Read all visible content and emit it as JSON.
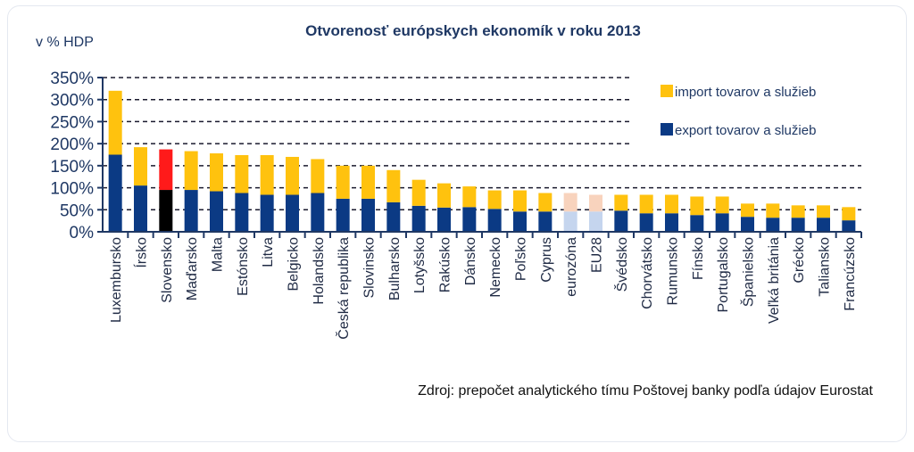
{
  "chart_data": {
    "type": "bar",
    "stacked": true,
    "title": "Otvorenosť európskych ekonomík v roku 2013",
    "ylabel": "v % HDP",
    "source": "Zdroj: prepočet analytického tímu Poštovej banky podľa údajov Eurostat",
    "ylim": [
      0,
      350
    ],
    "yticks": [
      "0%",
      "50%",
      "100%",
      "150%",
      "200%",
      "250%",
      "300%",
      "350%"
    ],
    "grid": true,
    "legend_position": "top-right",
    "categories": [
      "Luxembursko",
      "Írsko",
      "Slovensko",
      "Maďarsko",
      "Malta",
      "Estónsko",
      "Litva",
      "Belgicko",
      "Holandsko",
      "Česká republika",
      "Slovinsko",
      "Bulharsko",
      "Lotyšsko",
      "Rakúsko",
      "Dánsko",
      "Nemecko",
      "Poľsko",
      "Cyprus",
      "eurozóna",
      "EU28",
      "Švédsko",
      "Chorvátsko",
      "Rumunsko",
      "Fínsko",
      "Portugalsko",
      "Španielsko",
      "Veľká británia",
      "Grécko",
      "Taliansko",
      "Francúzsko"
    ],
    "series": [
      {
        "name": "export tovarov a služieb",
        "color": "#0b3a84",
        "values": [
          175,
          105,
          95,
          95,
          92,
          88,
          84,
          84,
          88,
          75,
          75,
          67,
          59,
          55,
          56,
          52,
          46,
          46,
          46,
          46,
          48,
          42,
          42,
          38,
          42,
          34,
          32,
          32,
          32,
          26
        ]
      },
      {
        "name": "import tovarov a služieb",
        "color": "#ffc20e",
        "values": [
          145,
          87,
          92,
          88,
          86,
          86,
          90,
          86,
          77,
          75,
          75,
          73,
          59,
          55,
          47,
          42,
          48,
          42,
          42,
          38,
          36,
          42,
          42,
          42,
          38,
          30,
          32,
          28,
          28,
          30
        ]
      }
    ],
    "highlight": {
      "Slovensko": {
        "export": "#000000",
        "import": "#ff1a1a"
      },
      "eurozóna": {
        "export": "#c5d5ee",
        "import": "#f8d3bd"
      },
      "EU28": {
        "export": "#c5d5ee",
        "import": "#f8d3bd"
      }
    }
  }
}
